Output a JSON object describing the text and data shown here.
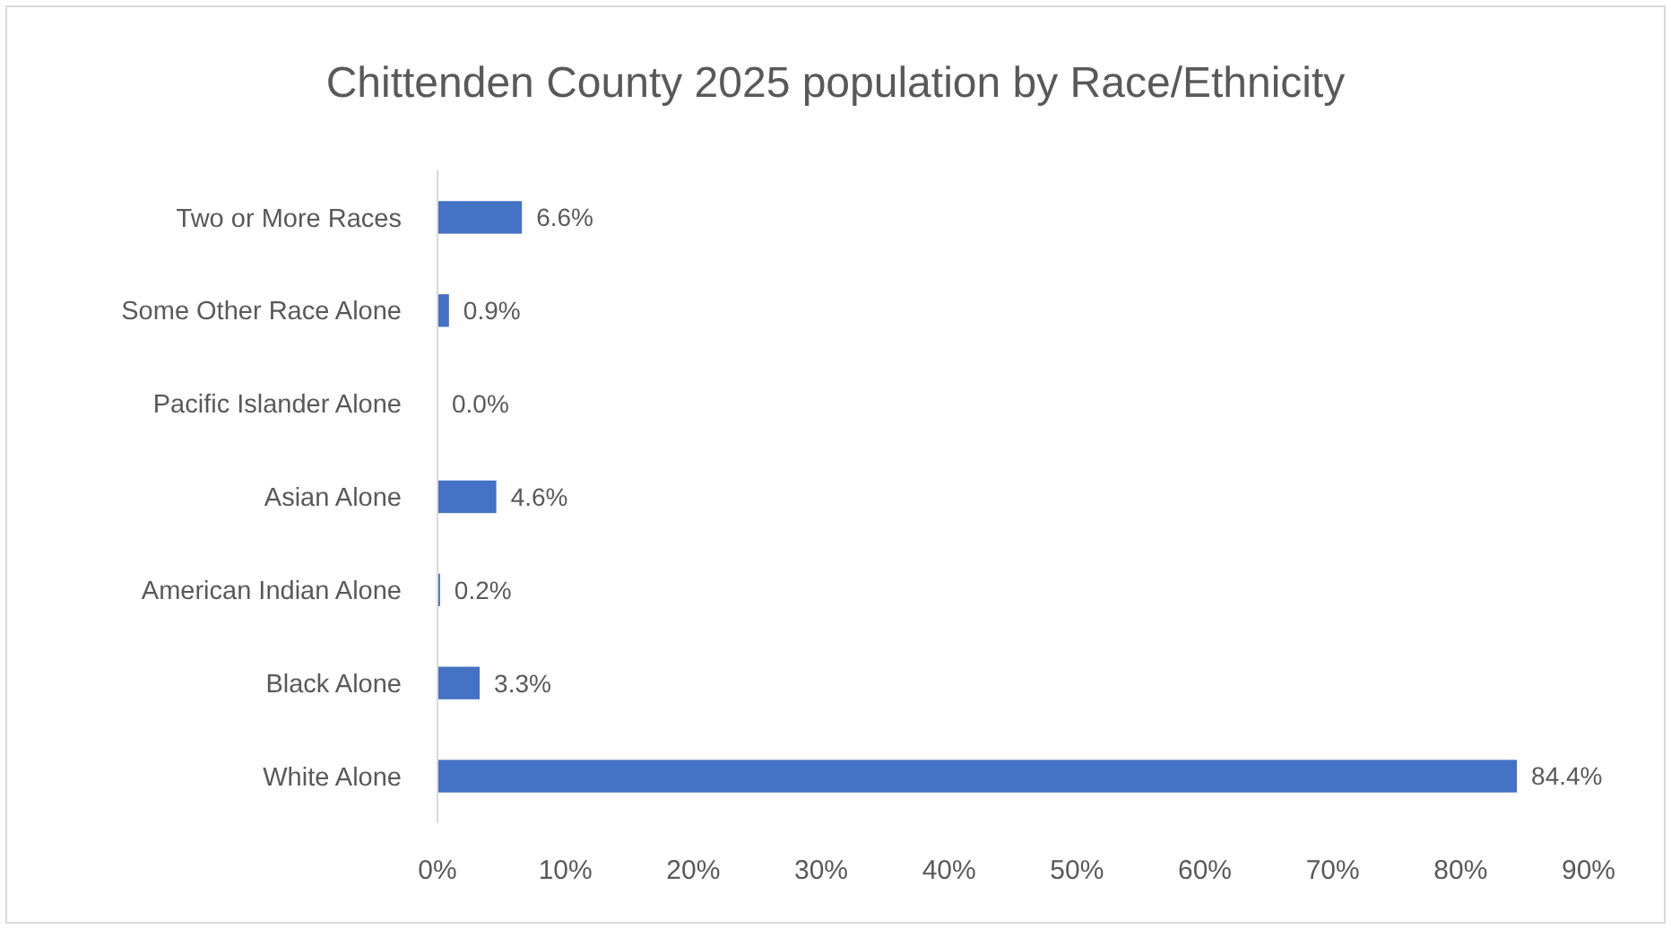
{
  "chart_data": {
    "type": "bar",
    "orientation": "horizontal",
    "title": "Chittenden County 2025 population by Race/Ethnicity",
    "categories": [
      "Two or More Races",
      "Some Other Race Alone",
      "Pacific Islander Alone",
      "Asian Alone",
      "American Indian Alone",
      "Black Alone",
      "White Alone"
    ],
    "values": [
      6.6,
      0.9,
      0.0,
      4.6,
      0.2,
      3.3,
      84.4
    ],
    "value_labels": [
      "6.6%",
      "0.9%",
      "0.0%",
      "4.6%",
      "0.2%",
      "3.3%",
      "84.4%"
    ],
    "color": "#4472c4",
    "xlim": [
      0,
      90
    ],
    "xticks": [
      {
        "value": 0,
        "label": "0%"
      },
      {
        "value": 10,
        "label": "10%"
      },
      {
        "value": 20,
        "label": "20%"
      },
      {
        "value": 30,
        "label": "30%"
      },
      {
        "value": 40,
        "label": "40%"
      },
      {
        "value": 50,
        "label": "50%"
      },
      {
        "value": 60,
        "label": "60%"
      },
      {
        "value": 70,
        "label": "70%"
      },
      {
        "value": 80,
        "label": "80%"
      },
      {
        "value": 90,
        "label": "90%"
      }
    ],
    "grid": false
  }
}
